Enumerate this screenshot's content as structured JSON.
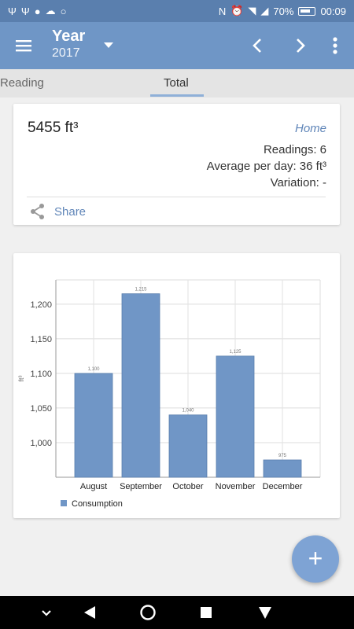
{
  "status_bar": {
    "battery": "70%",
    "time": "00:09"
  },
  "toolbar": {
    "title": "Year",
    "subtitle": "2017"
  },
  "tabs": [
    {
      "label": "Reading"
    },
    {
      "label": "Total"
    }
  ],
  "summary": {
    "total": "5455 ft³",
    "location": "Home",
    "readings": "Readings: 6",
    "average": "Average per day: 36 ft³",
    "variation": "Variation: -",
    "share_label": "Share"
  },
  "chart_data": {
    "type": "bar",
    "categories": [
      "August",
      "September",
      "October",
      "November",
      "December"
    ],
    "values": [
      1100,
      1215,
      1040,
      1125,
      975
    ],
    "data_labels": [
      "1,100",
      "1,215",
      "1,040",
      "1,125",
      "975"
    ],
    "ylabel": "ft³",
    "ylim": [
      950,
      1235
    ],
    "yticks": [
      1000,
      1050,
      1100,
      1150,
      1200
    ],
    "ytick_labels": [
      "1,000",
      "1,050",
      "1,100",
      "1,150",
      "1,200"
    ],
    "grid": true,
    "series": [
      {
        "name": "Consumption",
        "values": [
          1100,
          1215,
          1040,
          1125,
          975
        ]
      }
    ],
    "legend_position": "bottom-left",
    "color": "#7096c6"
  },
  "fab": {
    "label": "+"
  },
  "colors": {
    "primary": "#6f96c6",
    "status_bar": "#5a7fae",
    "accent": "#5f85b8",
    "fab": "#7ea3d4"
  }
}
